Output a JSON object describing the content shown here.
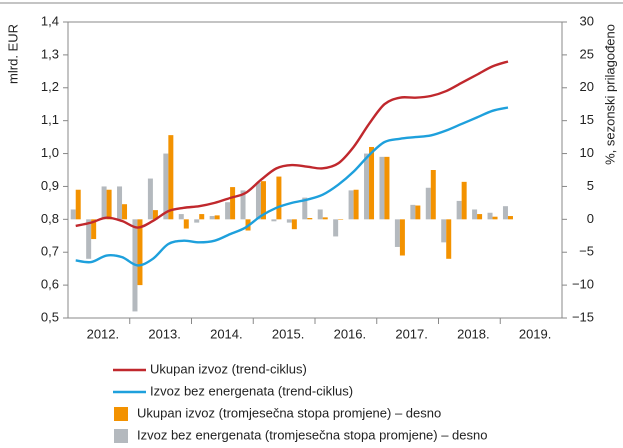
{
  "chart_data": {
    "type": "combo",
    "ylabel": "mlrd. EUR",
    "y2label": "%, sezonski prilagođeno",
    "x_labels": [
      "2012.",
      "2013.",
      "2014.",
      "2015.",
      "2016.",
      "2017.",
      "2018.",
      "2019."
    ],
    "ylim": [
      0.5,
      1.4
    ],
    "yticks": [
      {
        "value": 0.5,
        "label": "0,5"
      },
      {
        "value": 0.6,
        "label": "0,6"
      },
      {
        "value": 0.7,
        "label": "0,7"
      },
      {
        "value": 0.8,
        "label": "0,8"
      },
      {
        "value": 0.9,
        "label": "0,9"
      },
      {
        "value": 1.0,
        "label": "1,0"
      },
      {
        "value": 1.1,
        "label": "1,1"
      },
      {
        "value": 1.2,
        "label": "1,2"
      },
      {
        "value": 1.3,
        "label": "1,3"
      },
      {
        "value": 1.4,
        "label": "1,4"
      }
    ],
    "y2lim": [
      -15,
      30
    ],
    "y2ticks": [
      {
        "value": -15,
        "label": "−15"
      },
      {
        "value": -10,
        "label": "−10"
      },
      {
        "value": -5,
        "label": "−5"
      },
      0,
      5,
      10,
      15,
      20,
      25,
      30
    ],
    "series": [
      {
        "name": "Ukupan izvoz (trend-ciklus)",
        "type": "line",
        "color": "#c0282d",
        "values": [
          0.78,
          0.79,
          0.805,
          0.795,
          0.775,
          0.795,
          0.825,
          0.835,
          0.84,
          0.85,
          0.865,
          0.88,
          0.92,
          0.955,
          0.965,
          0.96,
          0.955,
          0.97,
          1.02,
          1.09,
          1.15,
          1.17,
          1.17,
          1.175,
          1.19,
          1.215,
          1.24,
          1.265,
          1.28
        ]
      },
      {
        "name": "Izvoz bez energenata (trend-ciklus)",
        "type": "line",
        "color": "#1ea0dc",
        "values": [
          0.675,
          0.67,
          0.69,
          0.685,
          0.66,
          0.68,
          0.725,
          0.735,
          0.73,
          0.735,
          0.755,
          0.775,
          0.81,
          0.835,
          0.85,
          0.86,
          0.875,
          0.905,
          0.945,
          0.995,
          1.035,
          1.045,
          1.05,
          1.055,
          1.07,
          1.09,
          1.11,
          1.13,
          1.14
        ]
      },
      {
        "name": "Ukupan izvoz (tromjesečna stopa promjene) – desno",
        "type": "bar",
        "axis": "y2",
        "color": "#f39200",
        "values": [
          4.5,
          -3,
          4.5,
          2.3,
          -10,
          1.4,
          12.8,
          -1.4,
          0.8,
          0.6,
          4.9,
          -1.7,
          5.8,
          6.5,
          -1.5,
          0.2,
          0.3,
          0,
          4.5,
          11,
          9.5,
          -5.5,
          2.1,
          7.5,
          -6,
          5.7,
          0.8,
          0.4,
          0.5
        ]
      },
      {
        "name": "Izvoz bez energenata (tromjesečna stopa promjene) – desno",
        "type": "bar",
        "axis": "y2",
        "color": "#b4b9be",
        "values": [
          1.5,
          -6,
          5,
          5,
          -14,
          6.2,
          10,
          0.8,
          -0.5,
          0.5,
          2.6,
          4.4,
          5.6,
          -0.3,
          -0.5,
          3.3,
          1.5,
          -2.6,
          4.4,
          10,
          9.5,
          -4.2,
          2.2,
          4.8,
          -3.5,
          2.8,
          1.5,
          1,
          2
        ]
      }
    ]
  }
}
